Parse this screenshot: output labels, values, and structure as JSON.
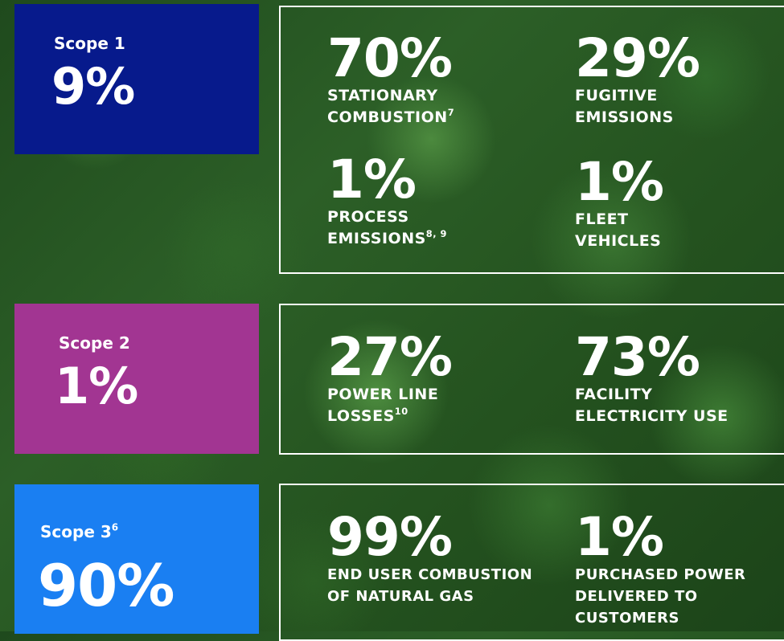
{
  "scope1": {
    "label": "Scope 1",
    "value": "9%",
    "color": "#071a8c",
    "stats": [
      {
        "pct": "70%",
        "line1": "STATIONARY",
        "line2": "COMBUSTION",
        "sup": "7"
      },
      {
        "pct": "29%",
        "line1": "FUGITIVE",
        "line2": "EMISSIONS",
        "sup": ""
      },
      {
        "pct": "1%",
        "line1": "PROCESS",
        "line2": "EMISSIONS",
        "sup": "8, 9"
      },
      {
        "pct": "1%",
        "line1": "FLEET",
        "line2": "VEHICLES",
        "sup": ""
      }
    ]
  },
  "scope2": {
    "label": "Scope 2",
    "value": "1%",
    "color": "#a23592",
    "stats": [
      {
        "pct": "27%",
        "line1": "POWER LINE",
        "line2": "LOSSES",
        "sup": "10"
      },
      {
        "pct": "73%",
        "line1": "FACILITY",
        "line2": "ELECTRICITY USE",
        "sup": ""
      }
    ]
  },
  "scope3": {
    "label": "Scope 3",
    "label_sup": "6",
    "value": "90%",
    "color": "#1a7ff2",
    "stats": [
      {
        "pct": "99%",
        "line1": "END USER COMBUSTION",
        "line2": "OF NATURAL GAS",
        "sup": ""
      },
      {
        "pct": "1%",
        "line1": "PURCHASED POWER",
        "line2": "DELIVERED TO",
        "line3": "CUSTOMERS",
        "sup": ""
      }
    ]
  }
}
